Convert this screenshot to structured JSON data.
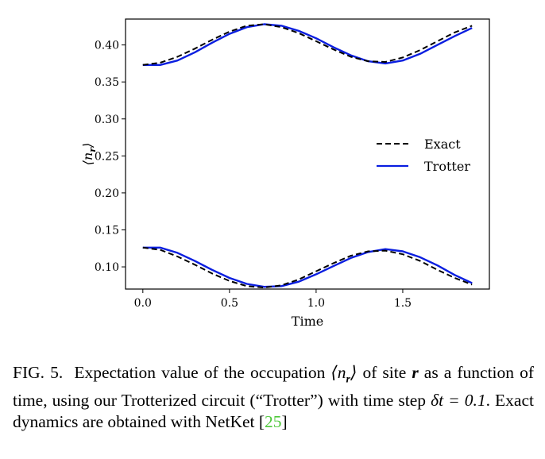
{
  "chart_data": {
    "type": "line",
    "xlabel": "Time",
    "ylabel": "⟨n_r⟩",
    "xlim": [
      -0.1,
      2.0
    ],
    "ylim": [
      0.07,
      0.435
    ],
    "xticks": [
      "0.0",
      "0.5",
      "1.0",
      "1.5"
    ],
    "yticks": [
      "0.10",
      "0.15",
      "0.20",
      "0.25",
      "0.30",
      "0.35",
      "0.40"
    ],
    "grid": false,
    "legend_position": "center-right",
    "x": [
      0.0,
      0.1,
      0.2,
      0.3,
      0.4,
      0.5,
      0.6,
      0.7,
      0.8,
      0.9,
      1.0,
      1.1,
      1.2,
      1.3,
      1.4,
      1.5,
      1.6,
      1.7,
      1.8,
      1.9
    ],
    "series": [
      {
        "name": "Exact",
        "style": "dashed",
        "color": "#000000",
        "groups": [
          [
            0.373,
            0.376,
            0.384,
            0.395,
            0.407,
            0.418,
            0.426,
            0.428,
            0.424,
            0.416,
            0.405,
            0.394,
            0.384,
            0.378,
            0.377,
            0.383,
            0.393,
            0.405,
            0.417,
            0.426
          ],
          [
            0.126,
            0.123,
            0.114,
            0.103,
            0.091,
            0.081,
            0.074,
            0.072,
            0.075,
            0.083,
            0.094,
            0.105,
            0.115,
            0.121,
            0.122,
            0.117,
            0.108,
            0.096,
            0.085,
            0.076
          ]
        ]
      },
      {
        "name": "Trotter",
        "style": "solid",
        "color": "#0a1ee0",
        "groups": [
          [
            0.373,
            0.373,
            0.379,
            0.39,
            0.403,
            0.415,
            0.424,
            0.428,
            0.426,
            0.419,
            0.409,
            0.397,
            0.386,
            0.378,
            0.375,
            0.379,
            0.388,
            0.4,
            0.412,
            0.423
          ],
          [
            0.126,
            0.126,
            0.119,
            0.108,
            0.096,
            0.085,
            0.077,
            0.073,
            0.074,
            0.08,
            0.09,
            0.101,
            0.112,
            0.12,
            0.124,
            0.121,
            0.113,
            0.102,
            0.089,
            0.078
          ]
        ]
      }
    ]
  },
  "caption": {
    "label": "FIG. 5.",
    "text_before_math1": "Expectation value of the occupation ",
    "math1": "⟨n_r⟩",
    "text_before_math2": " of site ",
    "math2": "r",
    "text_before_math3": " as a function of time, using our Trotterized circuit (“Trotter”) with time step ",
    "math3": "δt = 0.1",
    "text_after_math3": ". Exact dynamics are obtained with NetKet ",
    "cite_open": "[",
    "cite_num": "25",
    "cite_close": "]"
  }
}
